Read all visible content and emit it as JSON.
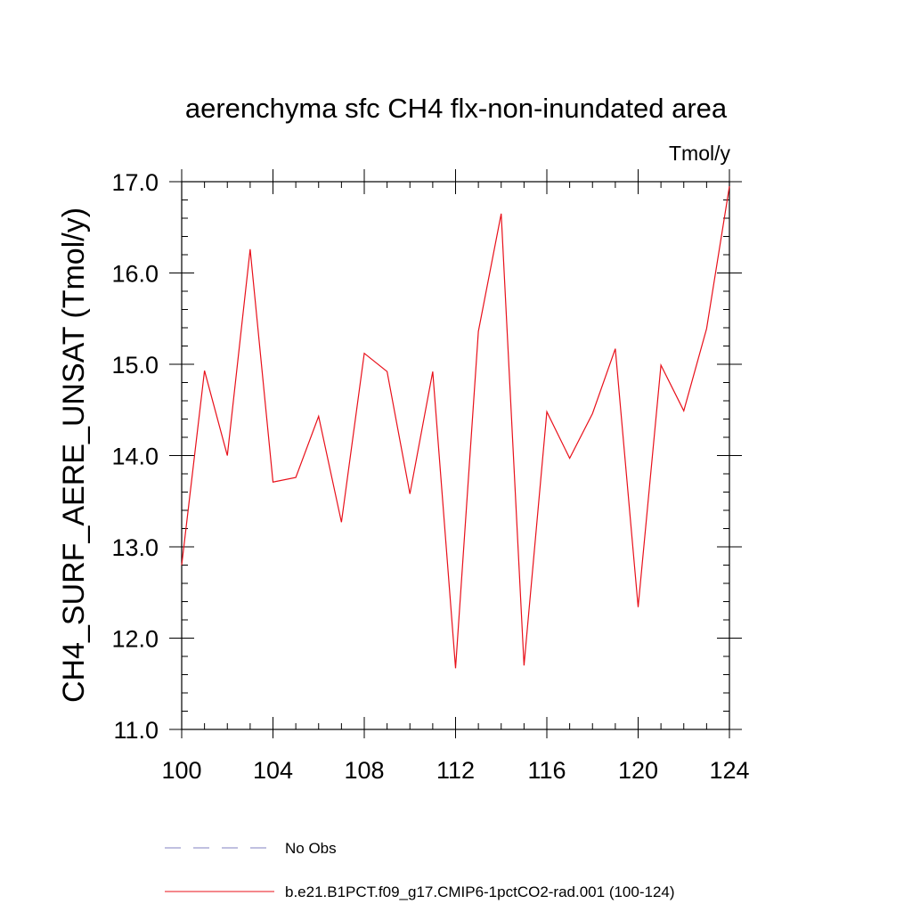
{
  "chart_data": {
    "type": "line",
    "title": "aerenchyma sfc CH4 flx-non-inundated area",
    "units_label": "Tmol/y",
    "ylabel": "CH4_SURF_AERE_UNSAT  (Tmol/y)",
    "xlabel": "",
    "xlim": [
      100,
      124
    ],
    "ylim": [
      11.0,
      17.0
    ],
    "x_ticks": [
      100,
      104,
      108,
      112,
      116,
      120,
      124
    ],
    "x_tick_labels": [
      "100",
      "104",
      "108",
      "112",
      "116",
      "120",
      "124"
    ],
    "y_ticks": [
      11.0,
      12.0,
      13.0,
      14.0,
      15.0,
      16.0,
      17.0
    ],
    "y_tick_labels": [
      "11.0",
      "12.0",
      "13.0",
      "14.0",
      "15.0",
      "16.0",
      "17.0"
    ],
    "grid": false,
    "legend_position": "bottom",
    "series": [
      {
        "name": "No Obs",
        "color": "#8080c0",
        "dash": true,
        "x": [],
        "values": []
      },
      {
        "name": "b.e21.B1PCT.f09_g17.CMIP6-1pctCO2-rad.001 (100-124)",
        "color": "#e8101a",
        "dash": false,
        "x": [
          100,
          101,
          102,
          103,
          104,
          105,
          106,
          107,
          108,
          109,
          110,
          111,
          112,
          113,
          114,
          115,
          116,
          117,
          118,
          119,
          120,
          121,
          122,
          123,
          124
        ],
        "values": [
          12.8,
          14.93,
          14.0,
          16.26,
          13.71,
          13.76,
          14.43,
          13.27,
          15.12,
          14.92,
          13.58,
          14.92,
          11.67,
          15.36,
          16.65,
          11.7,
          14.48,
          13.97,
          14.46,
          15.17,
          12.34,
          14.99,
          14.49,
          15.39,
          16.95
        ]
      }
    ]
  }
}
